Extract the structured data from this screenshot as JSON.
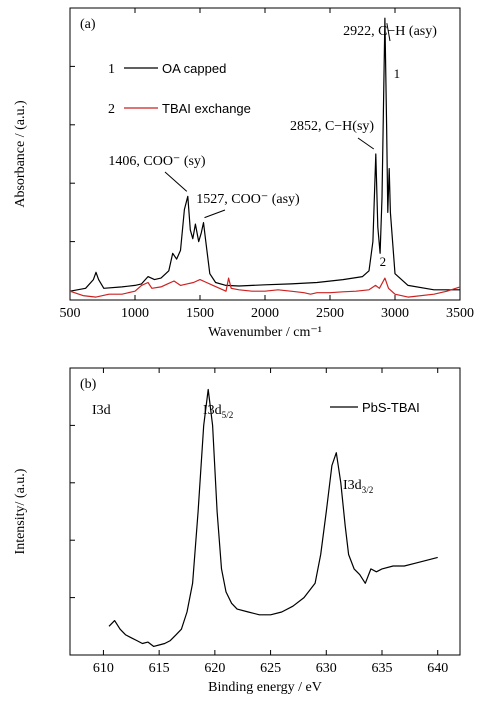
{
  "chart_data": [
    {
      "type": "line",
      "panel_label": "(a)",
      "xlabel": "Wavenumber / cm⁻¹",
      "ylabel": "Absorbance / (a.u.)",
      "xlim": [
        500,
        3500
      ],
      "ylim": [
        0,
        1.0
      ],
      "x_ticks": [
        500,
        1000,
        1500,
        2000,
        2500,
        3000,
        3500
      ],
      "y_ticks": [
        0.2,
        0.4,
        0.6,
        0.8
      ],
      "y_tick_labels_shown": false,
      "grid": false,
      "legend": {
        "position": "top-left",
        "entries": [
          {
            "number": "1",
            "label": "OA capped",
            "color": "#000000"
          },
          {
            "number": "2",
            "label": "TBAI exchange",
            "color": "#cc2222"
          }
        ]
      },
      "series": [
        {
          "name": "OA capped",
          "color": "#000000",
          "points": [
            [
              500,
              0.03
            ],
            [
              620,
              0.04
            ],
            [
              680,
              0.07
            ],
            [
              700,
              0.095
            ],
            [
              720,
              0.07
            ],
            [
              760,
              0.04
            ],
            [
              900,
              0.045
            ],
            [
              1000,
              0.05
            ],
            [
              1050,
              0.055
            ],
            [
              1100,
              0.08
            ],
            [
              1150,
              0.07
            ],
            [
              1200,
              0.075
            ],
            [
              1260,
              0.1
            ],
            [
              1290,
              0.16
            ],
            [
              1320,
              0.14
            ],
            [
              1350,
              0.17
            ],
            [
              1380,
              0.31
            ],
            [
              1406,
              0.355
            ],
            [
              1425,
              0.24
            ],
            [
              1445,
              0.21
            ],
            [
              1465,
              0.26
            ],
            [
              1490,
              0.2
            ],
            [
              1510,
              0.23
            ],
            [
              1527,
              0.265
            ],
            [
              1545,
              0.2
            ],
            [
              1575,
              0.09
            ],
            [
              1620,
              0.06
            ],
            [
              1700,
              0.05
            ],
            [
              1800,
              0.048
            ],
            [
              2000,
              0.052
            ],
            [
              2200,
              0.055
            ],
            [
              2400,
              0.06
            ],
            [
              2600,
              0.07
            ],
            [
              2750,
              0.08
            ],
            [
              2800,
              0.1
            ],
            [
              2830,
              0.2
            ],
            [
              2852,
              0.5
            ],
            [
              2868,
              0.25
            ],
            [
              2885,
              0.16
            ],
            [
              2900,
              0.35
            ],
            [
              2922,
              0.965
            ],
            [
              2935,
              0.6
            ],
            [
              2945,
              0.3
            ],
            [
              2955,
              0.45
            ],
            [
              2965,
              0.3
            ],
            [
              3000,
              0.09
            ],
            [
              3100,
              0.05
            ],
            [
              3300,
              0.035
            ],
            [
              3500,
              0.035
            ]
          ]
        },
        {
          "name": "TBAI exchange",
          "color": "#cc2222",
          "points": [
            [
              500,
              0.03
            ],
            [
              600,
              0.015
            ],
            [
              700,
              0.01
            ],
            [
              800,
              0.02
            ],
            [
              900,
              0.02
            ],
            [
              1000,
              0.03
            ],
            [
              1050,
              0.05
            ],
            [
              1100,
              0.06
            ],
            [
              1130,
              0.04
            ],
            [
              1200,
              0.045
            ],
            [
              1250,
              0.055
            ],
            [
              1300,
              0.065
            ],
            [
              1350,
              0.05
            ],
            [
              1400,
              0.055
            ],
            [
              1450,
              0.06
            ],
            [
              1500,
              0.07
            ],
            [
              1550,
              0.06
            ],
            [
              1600,
              0.05
            ],
            [
              1650,
              0.04
            ],
            [
              1700,
              0.03
            ],
            [
              1720,
              0.075
            ],
            [
              1740,
              0.04
            ],
            [
              1800,
              0.035
            ],
            [
              1900,
              0.03
            ],
            [
              2000,
              0.03
            ],
            [
              2100,
              0.035
            ],
            [
              2200,
              0.03
            ],
            [
              2300,
              0.025
            ],
            [
              2350,
              0.02
            ],
            [
              2400,
              0.025
            ],
            [
              2500,
              0.025
            ],
            [
              2600,
              0.028
            ],
            [
              2700,
              0.03
            ],
            [
              2800,
              0.035
            ],
            [
              2850,
              0.05
            ],
            [
              2880,
              0.04
            ],
            [
              2922,
              0.075
            ],
            [
              2950,
              0.04
            ],
            [
              3000,
              0.02
            ],
            [
              3100,
              0.01
            ],
            [
              3300,
              0.02
            ],
            [
              3400,
              0.03
            ],
            [
              3500,
              0.045
            ]
          ]
        }
      ],
      "annotations": [
        {
          "text": "2922, C−H (asy)",
          "x": 2922,
          "y": 0.965
        },
        {
          "text": "2852, C−H(sy)",
          "x": 2852,
          "y": 0.5
        },
        {
          "text": "1406,  COO⁻ (sy)",
          "x": 1406,
          "y": 0.355
        },
        {
          "text": "1527, COO⁻ (asy)",
          "x": 1527,
          "y": 0.265
        },
        {
          "text": "1",
          "x": 2922,
          "y": 0.8
        },
        {
          "text": "2",
          "x": 2922,
          "y": 0.075
        }
      ]
    },
    {
      "type": "line",
      "panel_label": "(b)",
      "xlabel": "Binding energy / eV",
      "ylabel": "Intensity/ (a.u.)",
      "xlim": [
        607,
        642
      ],
      "ylim": [
        0,
        1.0
      ],
      "x_ticks": [
        610,
        615,
        620,
        625,
        630,
        635,
        640
      ],
      "y_ticks": [
        0.2,
        0.4,
        0.6,
        0.8
      ],
      "y_tick_labels_shown": false,
      "grid": false,
      "legend": {
        "position": "top-right",
        "entries": [
          {
            "label": "PbS-TBAI",
            "color": "#000000"
          }
        ]
      },
      "series": [
        {
          "name": "PbS-TBAI",
          "color": "#000000",
          "points": [
            [
              610.5,
              0.1
            ],
            [
              611,
              0.12
            ],
            [
              611.5,
              0.09
            ],
            [
              612,
              0.07
            ],
            [
              612.5,
              0.06
            ],
            [
              613,
              0.05
            ],
            [
              613.5,
              0.04
            ],
            [
              614,
              0.045
            ],
            [
              614.5,
              0.03
            ],
            [
              615,
              0.035
            ],
            [
              615.5,
              0.04
            ],
            [
              616,
              0.05
            ],
            [
              616.5,
              0.07
            ],
            [
              617,
              0.09
            ],
            [
              617.5,
              0.15
            ],
            [
              618,
              0.25
            ],
            [
              618.5,
              0.5
            ],
            [
              619,
              0.8
            ],
            [
              619.4,
              0.925
            ],
            [
              619.8,
              0.8
            ],
            [
              620.2,
              0.5
            ],
            [
              620.6,
              0.3
            ],
            [
              621,
              0.22
            ],
            [
              621.5,
              0.18
            ],
            [
              622,
              0.16
            ],
            [
              623,
              0.15
            ],
            [
              624,
              0.14
            ],
            [
              625,
              0.14
            ],
            [
              626,
              0.15
            ],
            [
              627,
              0.17
            ],
            [
              628,
              0.2
            ],
            [
              629,
              0.25
            ],
            [
              629.5,
              0.35
            ],
            [
              630,
              0.5
            ],
            [
              630.5,
              0.66
            ],
            [
              630.9,
              0.705
            ],
            [
              631.3,
              0.6
            ],
            [
              631.7,
              0.45
            ],
            [
              632,
              0.35
            ],
            [
              632.5,
              0.3
            ],
            [
              633,
              0.28
            ],
            [
              633.5,
              0.25
            ],
            [
              634,
              0.3
            ],
            [
              634.5,
              0.29
            ],
            [
              635,
              0.3
            ],
            [
              636,
              0.31
            ],
            [
              637,
              0.31
            ],
            [
              638,
              0.32
            ],
            [
              639,
              0.33
            ],
            [
              640,
              0.34
            ]
          ]
        }
      ],
      "annotations": [
        {
          "text": "I3d",
          "x": 609,
          "y": 0.83
        },
        {
          "text": "I3d5/2",
          "x": 620.6,
          "y": 0.83
        },
        {
          "text": "I3d3/2",
          "x": 632.4,
          "y": 0.57
        }
      ]
    }
  ]
}
